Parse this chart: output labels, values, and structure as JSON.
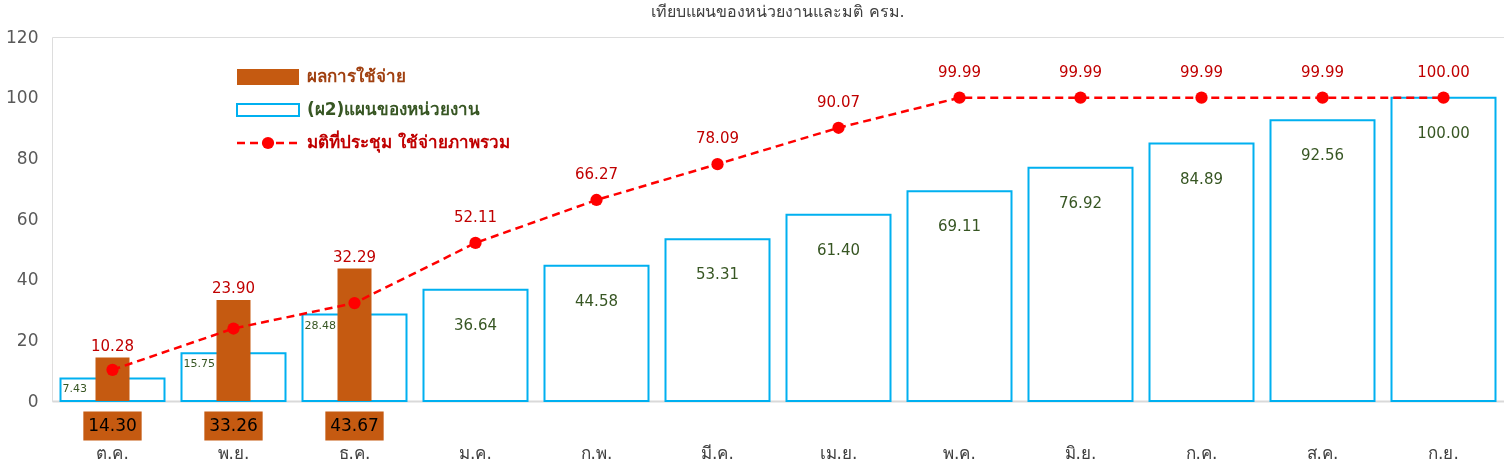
{
  "chart_data": {
    "type": "bar",
    "title": "เทียบแผนของหน่วยงานและมติ ครม.",
    "categories": [
      "ต.ค.",
      "พ.ย.",
      "ธ.ค.",
      "ม.ค.",
      "ก.พ.",
      "มี.ค.",
      "เม.ย.",
      "พ.ค.",
      "มิ.ย.",
      "ก.ค.",
      "ส.ค.",
      "ก.ย."
    ],
    "series": [
      {
        "name": "(ผ2)แผนของหน่วยงาน",
        "color": "#00b0f0",
        "values": [
          7.43,
          15.75,
          28.48,
          36.64,
          44.58,
          53.31,
          61.4,
          69.11,
          76.92,
          84.89,
          92.56,
          100.0
        ],
        "value_labels": [
          "7.43",
          "15.75",
          "28.48",
          "36.64",
          "44.58",
          "53.31",
          "61.40",
          "69.11",
          "76.92",
          "84.89",
          "92.56",
          "100.00"
        ]
      },
      {
        "name": "ผลการใช้จ่าย",
        "color": "#c55a11",
        "values": [
          14.3,
          33.26,
          43.67,
          null,
          null,
          null,
          null,
          null,
          null,
          null,
          null,
          null
        ],
        "value_labels": [
          "14.30",
          "33.26",
          "43.67",
          null,
          null,
          null,
          null,
          null,
          null,
          null,
          null,
          null
        ]
      },
      {
        "name": "มติที่ประชุม ใช้จ่ายภาพรวม",
        "type": "line",
        "color": "#ff0000",
        "marker": "circle",
        "line_style": "dashed",
        "values": [
          10.28,
          23.9,
          32.29,
          52.11,
          66.27,
          78.09,
          90.07,
          99.99,
          99.99,
          99.99,
          99.99,
          100.0
        ],
        "value_labels": [
          "10.28",
          "23.90",
          "32.29",
          "52.11",
          "66.27",
          "78.09",
          "90.07",
          "99.99",
          "99.99",
          "99.99",
          "99.99",
          "100.00"
        ]
      }
    ],
    "ylim": [
      0,
      120
    ],
    "yticks": [
      0,
      20,
      40,
      60,
      80,
      100,
      120
    ],
    "grid": false,
    "legend": "top left"
  }
}
